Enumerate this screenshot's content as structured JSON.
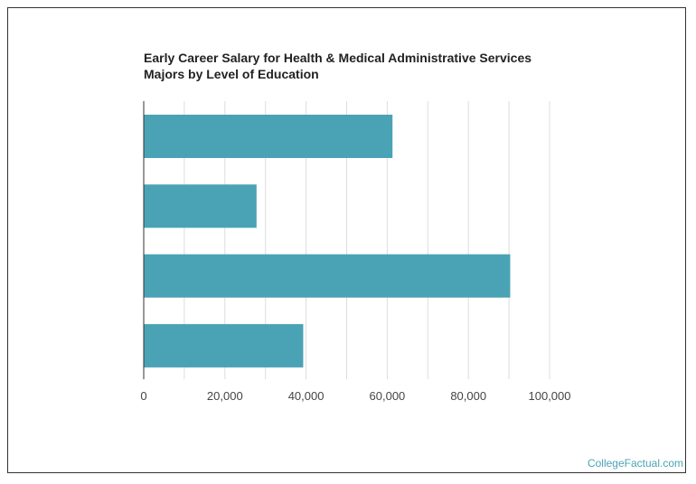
{
  "title_lines": [
    "Early Career Salary for Health & Medical Administrative Services",
    "Majors by Level of Education"
  ],
  "watermark": "CollegeFactual.com",
  "colors": {
    "bar": "#4aa3b5",
    "grid": "#dddddd",
    "axis": "#333333"
  },
  "chart_data": {
    "type": "bar",
    "orientation": "horizontal",
    "title": "Early Career Salary for Health & Medical Administrative Services Majors by Level of Education",
    "categories": [
      "",
      "",
      "",
      ""
    ],
    "values": [
      61300,
      27800,
      90300,
      39300
    ],
    "xlim": [
      0,
      100000
    ],
    "xticks": [
      0,
      20000,
      40000,
      60000,
      80000,
      100000
    ],
    "xtick_labels": [
      "0",
      "20,000",
      "40,000",
      "60,000",
      "80,000",
      "100,000"
    ],
    "grid": true,
    "legend": "none"
  }
}
